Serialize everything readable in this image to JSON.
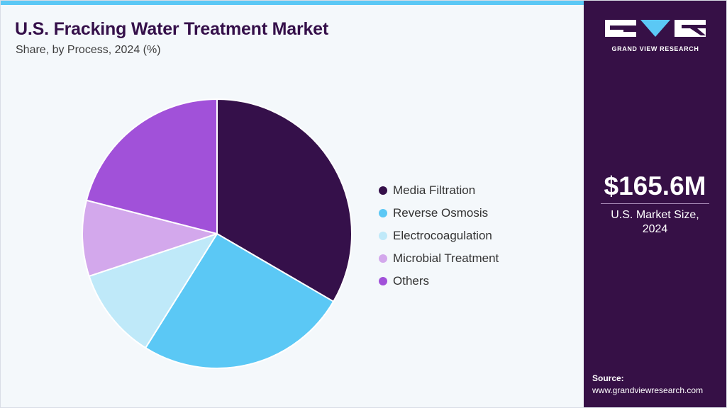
{
  "header": {
    "title": "U.S. Fracking Water Treatment Market",
    "subtitle": "Share, by Process, 2024 (%)"
  },
  "chart_data": {
    "type": "pie",
    "title": "U.S. Fracking Water Treatment Market",
    "subtitle": "Share, by Process, 2024 (%)",
    "start_angle_deg": 0,
    "direction": "clockwise",
    "legend_position": "right",
    "slices": [
      {
        "key": "media-filtration",
        "label": "Media Filtration",
        "value": 33.4,
        "color": "#35104a"
      },
      {
        "key": "reverse-osmosis",
        "label": "Reverse Osmosis",
        "value": 25.5,
        "color": "#5bc8f5"
      },
      {
        "key": "electrocoagulation",
        "label": "Electrocoagulation",
        "value": 11.0,
        "color": "#bfe9f9"
      },
      {
        "key": "microbial-treatment",
        "label": "Microbial Treatment",
        "value": 9.1,
        "color": "#d3a8ec"
      },
      {
        "key": "others",
        "label": "Others",
        "value": 21.0,
        "color": "#a151d9"
      }
    ]
  },
  "sidebar": {
    "brand": "GRAND VIEW RESEARCH",
    "market_value": "$165.6M",
    "market_caption_line1": "U.S. Market Size,",
    "market_caption_line2": "2024",
    "source_label": "Source:",
    "source_url": "www.grandviewresearch.com",
    "colors": {
      "background": "#361046",
      "accent": "#5bc8f5"
    }
  }
}
